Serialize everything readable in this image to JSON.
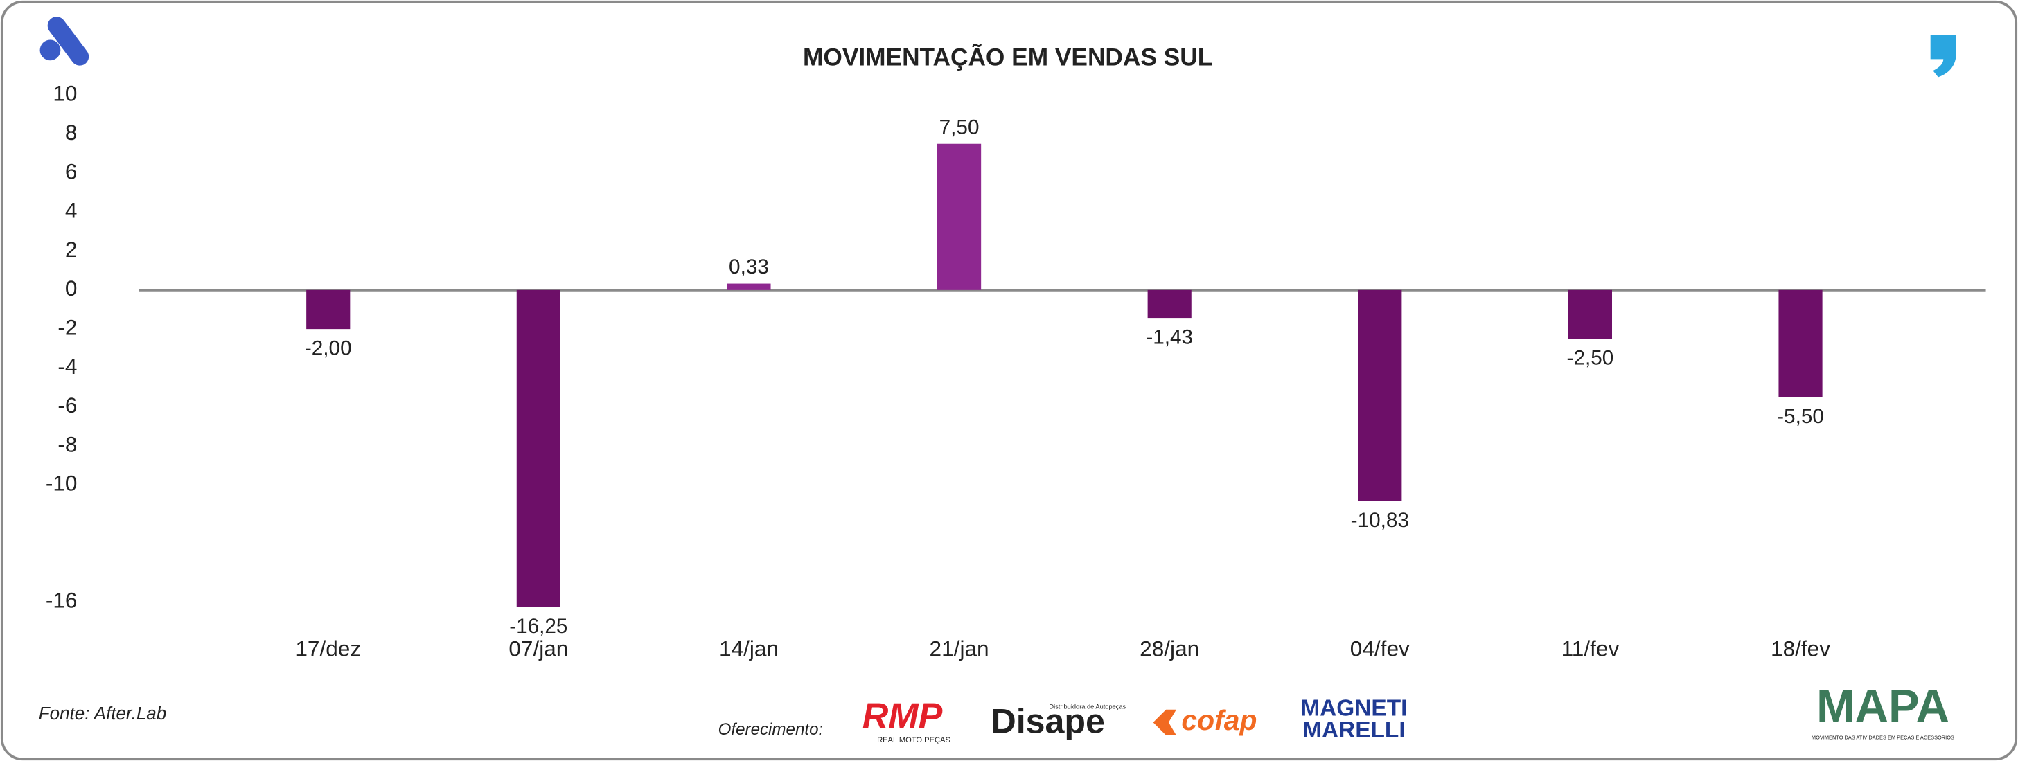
{
  "chart_data": {
    "type": "bar",
    "title": "MOVIMENTAÇÃO EM VENDAS SUL",
    "categories": [
      "17/dez",
      "07/jan",
      "14/jan",
      "21/jan",
      "28/jan",
      "04/fev",
      "11/fev",
      "18/fev"
    ],
    "values": [
      -2.0,
      -16.25,
      0.33,
      7.5,
      -1.43,
      -10.83,
      -2.5,
      -5.5
    ],
    "value_labels": [
      "-2,00",
      "-16,25",
      "0,33",
      "7,50",
      "-1,43",
      "-10,83",
      "-2,50",
      "-5,50"
    ],
    "positive_color": "#8e2890",
    "negative_color": "#6d0f68",
    "ylim": [
      -16.25,
      10
    ],
    "yticks": [
      10,
      8,
      6,
      4,
      2,
      0,
      -2,
      -4,
      -6,
      -8,
      -10,
      -16
    ],
    "grid": false
  },
  "footer": {
    "source": "Fonte: After.Lab",
    "sponsor_label": "Oferecimento:",
    "logos": [
      "RMP",
      "REAL MOTO PEÇAS",
      "Distribuidora de Autopeças",
      "Disape",
      "cofap",
      "MAGNETI",
      "MARELLI",
      "MAPA",
      "MOVIMENTO DAS ATIVIDADES EM PEÇAS E ACESSÓRIOS"
    ]
  }
}
